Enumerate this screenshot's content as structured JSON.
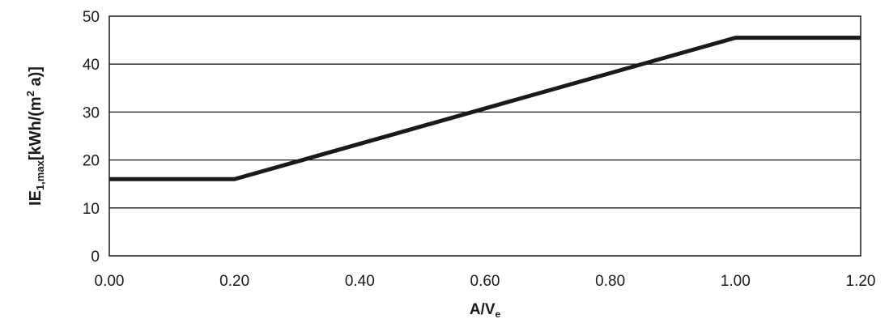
{
  "chart_data": {
    "type": "line",
    "title": "",
    "xlabel": "A/V",
    "xlabel_sub": "e",
    "ylabel_main": "IE",
    "ylabel_sub": "1,max",
    "ylabel_unit_pre": "[kWh/(m",
    "ylabel_unit_sup": "2",
    "ylabel_unit_post": " a)]",
    "xlim": [
      0,
      1.2
    ],
    "ylim": [
      0,
      50
    ],
    "x_ticks": [
      0,
      0.2,
      0.4,
      0.6,
      0.8,
      1.0,
      1.2
    ],
    "x_tick_labels": [
      "0.00",
      "0.20",
      "0.40",
      "0.60",
      "0.80",
      "1.00",
      "1.20"
    ],
    "y_ticks": [
      0,
      10,
      20,
      30,
      40,
      50
    ],
    "y_tick_labels": [
      "0",
      "10",
      "20",
      "30",
      "40",
      "50"
    ],
    "grid": "horizontal",
    "series": [
      {
        "x": [
          0.0,
          0.2,
          1.0,
          1.2
        ],
        "y": [
          16,
          16,
          45.5,
          45.5
        ],
        "color": "#1a1a1a"
      }
    ]
  }
}
